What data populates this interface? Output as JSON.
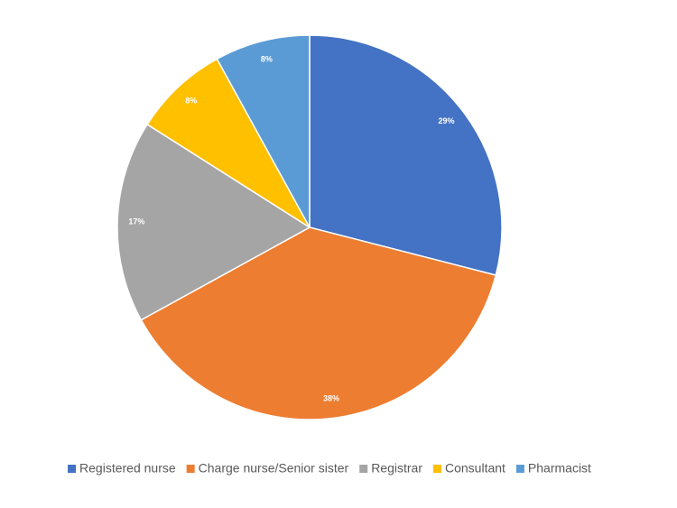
{
  "chart_data": {
    "type": "pie",
    "categories": [
      "Registered nurse",
      "Charge nurse/Senior sister",
      "Registrar",
      "Consultant",
      "Pharmacist"
    ],
    "values": [
      29,
      38,
      17,
      8,
      8
    ],
    "value_labels": [
      "29%",
      "38%",
      "17%",
      "8%",
      "8%"
    ],
    "colors": [
      "#4472c4",
      "#ed7d31",
      "#a5a5a5",
      "#ffc000",
      "#5b9bd5"
    ],
    "legend": "bottom"
  }
}
